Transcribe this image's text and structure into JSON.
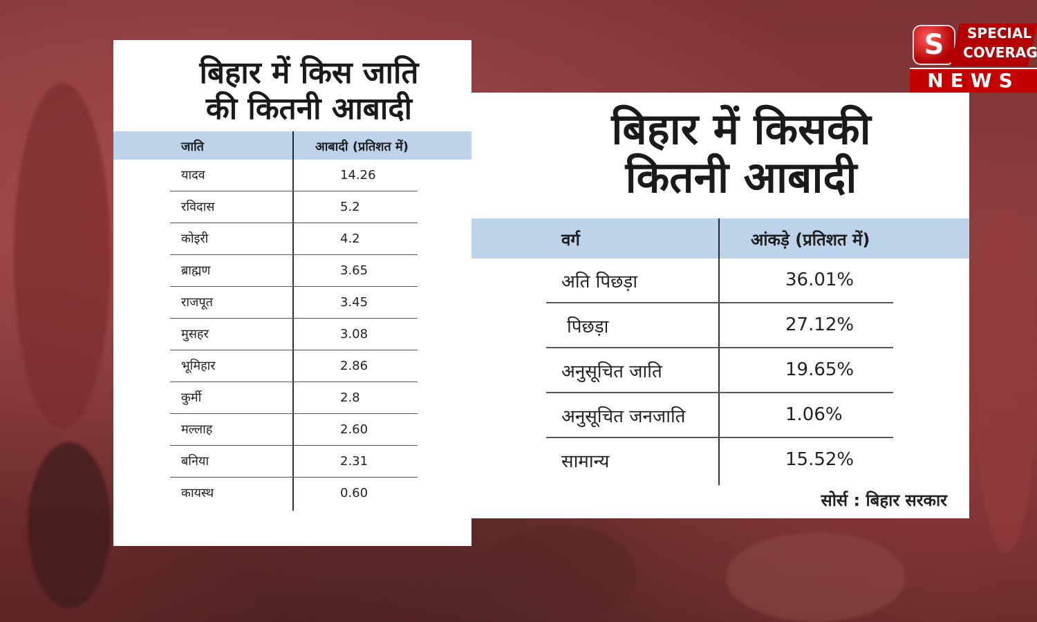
{
  "left_card": {
    "title_line1": "बिहार में किस जाति",
    "title_line2": "की कितनी आबादी",
    "col1_header": "जाति",
    "col2_header": "आबादी (प्रतिशत में)",
    "rows": [
      {
        "caste": "यादव",
        "value": "14.26"
      },
      {
        "caste": "रविदास",
        "value": "5.2"
      },
      {
        "caste": "कोइरी",
        "value": "4.2"
      },
      {
        "caste": "ब्राह्मण",
        "value": "3.65"
      },
      {
        "caste": "राजपूत",
        "value": "3.45"
      },
      {
        "caste": "मुसहर",
        "value": "3.08"
      },
      {
        "caste": "भूमिहार",
        "value": "2.86"
      },
      {
        "caste": "कुर्मी",
        "value": "2.8"
      },
      {
        "caste": "मल्लाह",
        "value": "2.60"
      },
      {
        "caste": "बनिया",
        "value": "2.31"
      },
      {
        "caste": "कायस्थ",
        "value": "0.60"
      }
    ]
  },
  "right_card": {
    "title_line1": "बिहार में किसकी",
    "title_line2": "कितनी आबादी",
    "col1_header": "वर्ग",
    "col2_header": "आंकड़े (प्रतिशत में)",
    "rows": [
      {
        "category": "अति पिछड़ा",
        "value": "36.01%"
      },
      {
        "category": "पिछड़ा",
        "value": "27.12%"
      },
      {
        "category": "अनुसूचित जाति",
        "value": "19.65%"
      },
      {
        "category": "अनुसूचित जनजाति",
        "value": "1.06%"
      },
      {
        "category": "सामान्य",
        "value": "15.52%"
      }
    ],
    "source": "सोर्स : बिहार सरकार"
  },
  "logo": {
    "letter": "S",
    "line1": "SPECIAL",
    "line2": "COVERAGE",
    "line3": "NEWS"
  },
  "colors": {
    "header_blue": "#bdd3ea",
    "background_red": "#7d3436",
    "logo_red": "#c40000"
  }
}
